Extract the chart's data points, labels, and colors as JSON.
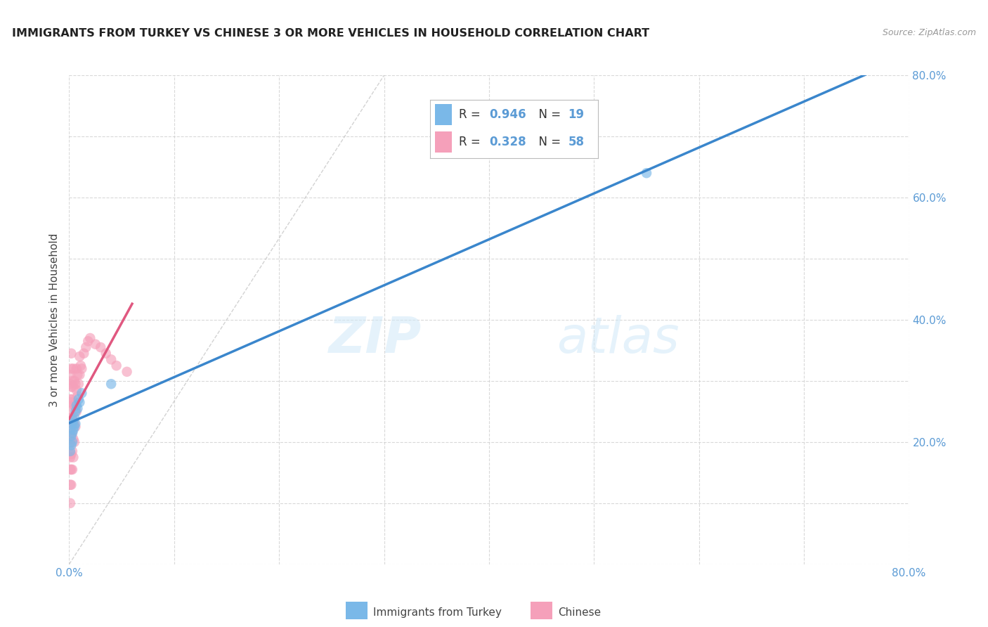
{
  "title": "IMMIGRANTS FROM TURKEY VS CHINESE 3 OR MORE VEHICLES IN HOUSEHOLD CORRELATION CHART",
  "source": "Source: ZipAtlas.com",
  "ylabel_label": "3 or more Vehicles in Household",
  "xlim": [
    0.0,
    0.8
  ],
  "ylim": [
    0.0,
    0.8
  ],
  "watermark_zip": "ZIP",
  "watermark_atlas": "atlas",
  "turkey_color": "#7ab8e8",
  "turkey_line_color": "#3a86cc",
  "chinese_color": "#f5a0ba",
  "chinese_line_color": "#e05880",
  "axis_color": "#5b9bd5",
  "grid_color": "#d0d0d0",
  "diagonal_color": "#c0c0c0",
  "turkey_R": "0.946",
  "turkey_N": "19",
  "chinese_R": "0.328",
  "chinese_N": "58",
  "turkey_scatter_x": [
    0.001,
    0.002,
    0.002,
    0.003,
    0.003,
    0.003,
    0.004,
    0.004,
    0.005,
    0.005,
    0.006,
    0.006,
    0.007,
    0.008,
    0.009,
    0.01,
    0.012,
    0.04,
    0.55
  ],
  "turkey_scatter_y": [
    0.185,
    0.195,
    0.21,
    0.2,
    0.215,
    0.23,
    0.22,
    0.235,
    0.225,
    0.24,
    0.23,
    0.25,
    0.26,
    0.255,
    0.27,
    0.265,
    0.28,
    0.295,
    0.64
  ],
  "chinese_scatter_x": [
    0.001,
    0.001,
    0.001,
    0.001,
    0.001,
    0.001,
    0.001,
    0.001,
    0.001,
    0.001,
    0.002,
    0.002,
    0.002,
    0.002,
    0.002,
    0.002,
    0.002,
    0.002,
    0.002,
    0.003,
    0.003,
    0.003,
    0.003,
    0.003,
    0.003,
    0.004,
    0.004,
    0.004,
    0.004,
    0.004,
    0.004,
    0.005,
    0.005,
    0.005,
    0.005,
    0.006,
    0.006,
    0.006,
    0.007,
    0.007,
    0.007,
    0.008,
    0.008,
    0.009,
    0.01,
    0.01,
    0.011,
    0.012,
    0.014,
    0.016,
    0.018,
    0.02,
    0.025,
    0.03,
    0.035,
    0.04,
    0.045,
    0.055
  ],
  "chinese_scatter_y": [
    0.1,
    0.13,
    0.155,
    0.175,
    0.2,
    0.22,
    0.25,
    0.27,
    0.295,
    0.31,
    0.13,
    0.155,
    0.18,
    0.21,
    0.24,
    0.265,
    0.29,
    0.32,
    0.345,
    0.155,
    0.185,
    0.215,
    0.24,
    0.27,
    0.3,
    0.175,
    0.205,
    0.23,
    0.26,
    0.29,
    0.32,
    0.2,
    0.23,
    0.26,
    0.3,
    0.225,
    0.26,
    0.295,
    0.25,
    0.285,
    0.32,
    0.275,
    0.31,
    0.295,
    0.31,
    0.34,
    0.325,
    0.32,
    0.345,
    0.355,
    0.365,
    0.37,
    0.36,
    0.355,
    0.345,
    0.335,
    0.325,
    0.315
  ],
  "legend_R_label": "R = ",
  "legend_N_label": "N = "
}
